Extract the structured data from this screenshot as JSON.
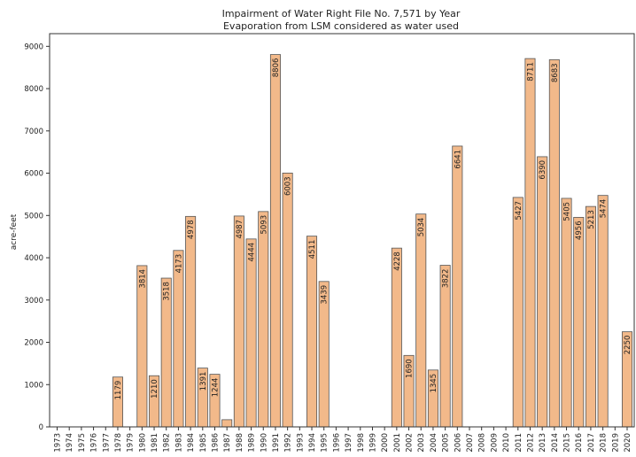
{
  "chart_data": {
    "type": "bar",
    "title": "Impairment of Water Right File No. 7,571 by Year",
    "subtitle": "Evaporation from LSM considered as water used",
    "xlabel": "",
    "ylabel": "acre-feet",
    "ylim": [
      0,
      9300
    ],
    "yticks": [
      "0",
      "1000",
      "2000",
      "3000",
      "4000",
      "5000",
      "6000",
      "7000",
      "8000",
      "9000"
    ],
    "grid": false,
    "bar_color": "#f2b98a",
    "edge_color": "#555555",
    "categories": [
      "1973",
      "1974",
      "1975",
      "1976",
      "1977",
      "1978",
      "1979",
      "1980",
      "1981",
      "1982",
      "1983",
      "1984",
      "1985",
      "1986",
      "1987",
      "1988",
      "1989",
      "1990",
      "1991",
      "1992",
      "1993",
      "1994",
      "1995",
      "1996",
      "1997",
      "1998",
      "1999",
      "2000",
      "2001",
      "2002",
      "2003",
      "2004",
      "2005",
      "2006",
      "2007",
      "2008",
      "2009",
      "2010",
      "2011",
      "2012",
      "2013",
      "2014",
      "2015",
      "2016",
      "2017",
      "2018",
      "2019",
      "2020"
    ],
    "values": [
      0,
      0,
      0,
      0,
      0,
      1179,
      0,
      3814,
      1210,
      3518,
      4173,
      4978,
      1391,
      1244,
      170,
      4987,
      4444,
      5093,
      8806,
      6003,
      0,
      4511,
      3439,
      0,
      0,
      0,
      0,
      0,
      4228,
      1690,
      5034,
      1345,
      3822,
      6641,
      0,
      0,
      0,
      0,
      5427,
      8711,
      6390,
      8683,
      5405,
      4956,
      5213,
      5474,
      0,
      2250
    ],
    "data_labels": [
      "",
      "",
      "",
      "",
      "",
      "1179",
      "",
      "3814",
      "1210",
      "3518",
      "4173",
      "4978",
      "1391",
      "1244",
      "",
      "4987",
      "4444",
      "5093",
      "8806",
      "6003",
      "",
      "4511",
      "3439",
      "",
      "",
      "",
      "",
      "",
      "4228",
      "1690",
      "5034",
      "1345",
      "3822",
      "6641",
      "",
      "",
      "",
      "",
      "5427",
      "8711",
      "6390",
      "8683",
      "5405",
      "4956",
      "5213",
      "5474",
      "",
      "2250"
    ]
  }
}
